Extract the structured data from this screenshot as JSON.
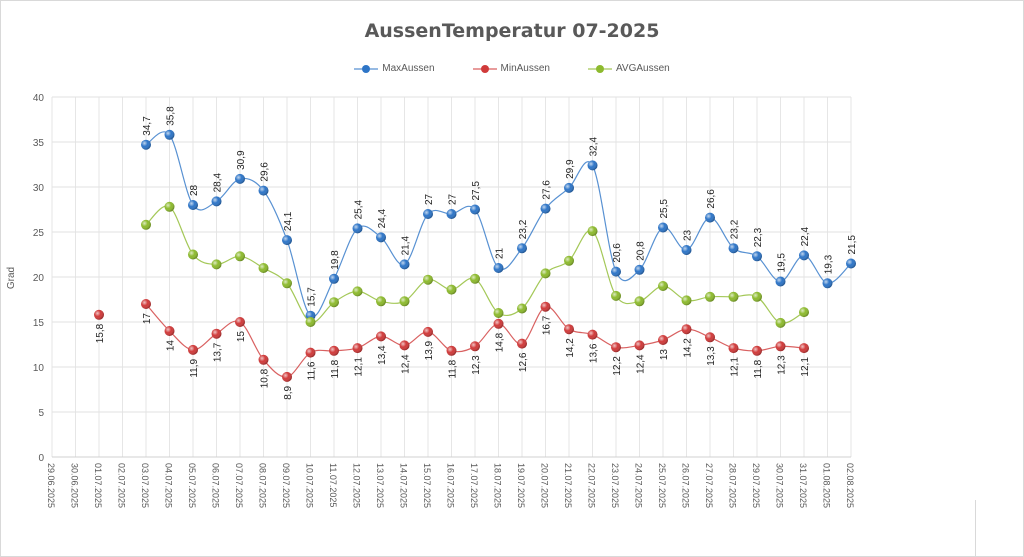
{
  "chart_data": {
    "type": "line",
    "title": "AussenTemperatur 07-2025",
    "ylabel": "Grad",
    "xlabel": "",
    "ylim": [
      0,
      40
    ],
    "yticks": [
      0,
      5,
      10,
      15,
      20,
      25,
      30,
      35,
      40
    ],
    "grid": true,
    "smooth": true,
    "legend_position": "top",
    "categories": [
      "29.06.2025",
      "30.06.2025",
      "01.07.2025",
      "02.07.2025",
      "03.07.2025",
      "04.07.2025",
      "05.07.2025",
      "06.07.2025",
      "07.07.2025",
      "08.07.2025",
      "09.07.2025",
      "10.07.2025",
      "11.07.2025",
      "12.07.2025",
      "13.07.2025",
      "14.07.2025",
      "15.07.2025",
      "16.07.2025",
      "17.07.2025",
      "18.07.2025",
      "19.07.2025",
      "20.07.2025",
      "21.07.2025",
      "22.07.2025",
      "23.07.2025",
      "24.07.2025",
      "25.07.2025",
      "26.07.2025",
      "27.07.2025",
      "28.07.2025",
      "29.07.2025",
      "30.07.2025",
      "31.07.2025",
      "01.08.2025",
      "02.08.2025"
    ],
    "series": [
      {
        "name": "MaxAussen",
        "color": "#2e75c7",
        "labels": "above",
        "values": [
          null,
          null,
          null,
          null,
          34.7,
          35.8,
          28,
          28.4,
          30.9,
          29.6,
          24.1,
          15.7,
          19.8,
          25.4,
          24.4,
          21.4,
          27,
          27,
          27.5,
          21,
          23.2,
          27.6,
          29.9,
          32.4,
          20.6,
          20.8,
          25.5,
          23,
          26.6,
          23.2,
          22.3,
          19.5,
          22.4,
          19.3,
          21.5
        ]
      },
      {
        "name": "MinAussen",
        "color": "#d03a3a",
        "labels": "below",
        "values": [
          null,
          null,
          15.8,
          null,
          17,
          14,
          11.9,
          13.7,
          15,
          10.8,
          8.9,
          11.6,
          11.8,
          12.1,
          13.4,
          12.4,
          13.9,
          11.8,
          12.3,
          14.8,
          12.6,
          16.7,
          14.2,
          13.6,
          12.2,
          12.4,
          13,
          14.2,
          13.3,
          12.1,
          11.8,
          12.3,
          12.1,
          null,
          null
        ]
      },
      {
        "name": "AVGAussen",
        "color": "#8dba2e",
        "labels": "none",
        "values": [
          null,
          null,
          null,
          null,
          25.8,
          27.8,
          22.5,
          21.4,
          22.3,
          21,
          19.3,
          15,
          17.2,
          18.4,
          17.3,
          17.3,
          19.7,
          18.6,
          19.8,
          16,
          16.5,
          20.4,
          21.8,
          25.1,
          17.9,
          17.3,
          19,
          17.4,
          17.8,
          17.8,
          17.8,
          14.9,
          16.1,
          null,
          null
        ]
      }
    ]
  }
}
